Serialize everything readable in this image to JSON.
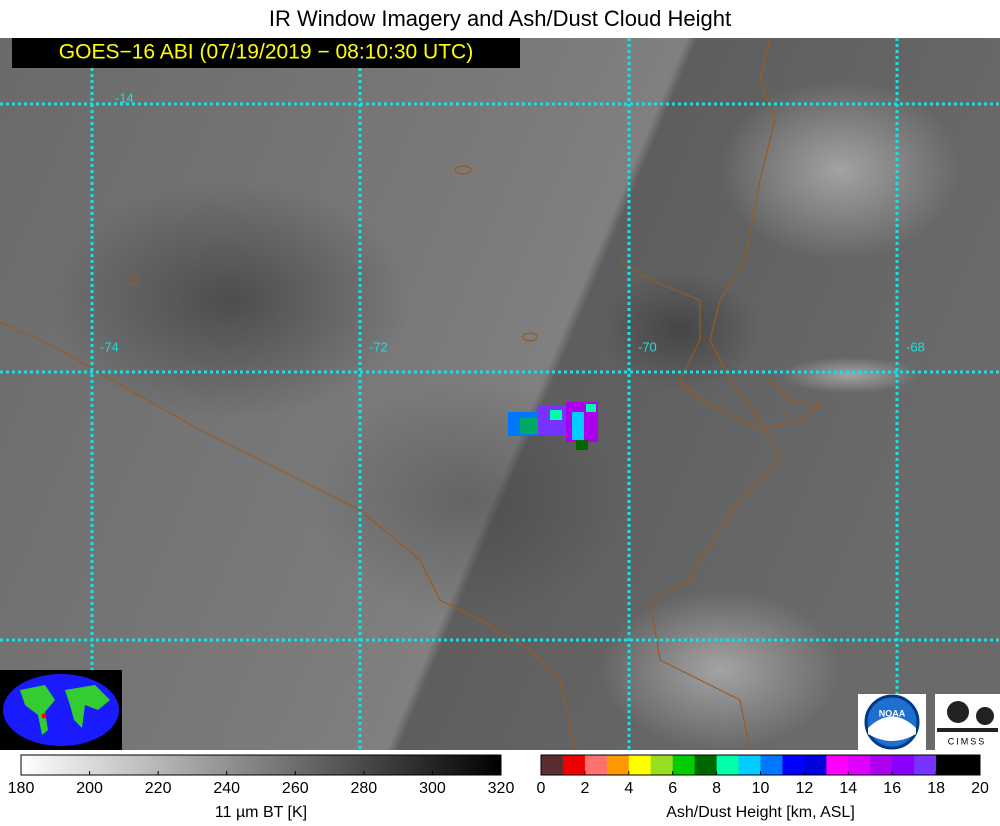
{
  "header": {
    "title": "IR Window Imagery and Ash/Dust Cloud Height",
    "badge": "GOES−16 ABI (07/19/2019 − 08:10:30 UTC)"
  },
  "map": {
    "latitude_labels": [
      "-14"
    ],
    "longitude_labels": [
      "-74",
      "-72",
      "-70",
      "-68"
    ]
  },
  "logos": {
    "noaa": "NOAA",
    "cimss": "CIMSS"
  },
  "colorbars": [
    {
      "label": "11 µm BT [K]",
      "range": [
        180,
        320
      ],
      "ticks": [
        180,
        200,
        220,
        240,
        260,
        280,
        300,
        320
      ],
      "colors": [
        "#ffffff",
        "#000000"
      ]
    },
    {
      "label": "Ash/Dust Height [km, ASL]",
      "range": [
        0,
        20
      ],
      "ticks": [
        0,
        2,
        4,
        6,
        8,
        10,
        12,
        14,
        16,
        18,
        20
      ],
      "colors": [
        "#5a2e2e",
        "#ee0000",
        "#ff7070",
        "#ff9900",
        "#ffff00",
        "#99dd22",
        "#00cc00",
        "#006600",
        "#00ffaa",
        "#00ccff",
        "#0077ff",
        "#0000ff",
        "#0000dd",
        "#ff00ff",
        "#dd00ff",
        "#aa00ee",
        "#8800ff",
        "#7733ff",
        "#000000",
        "#000000"
      ]
    }
  ]
}
